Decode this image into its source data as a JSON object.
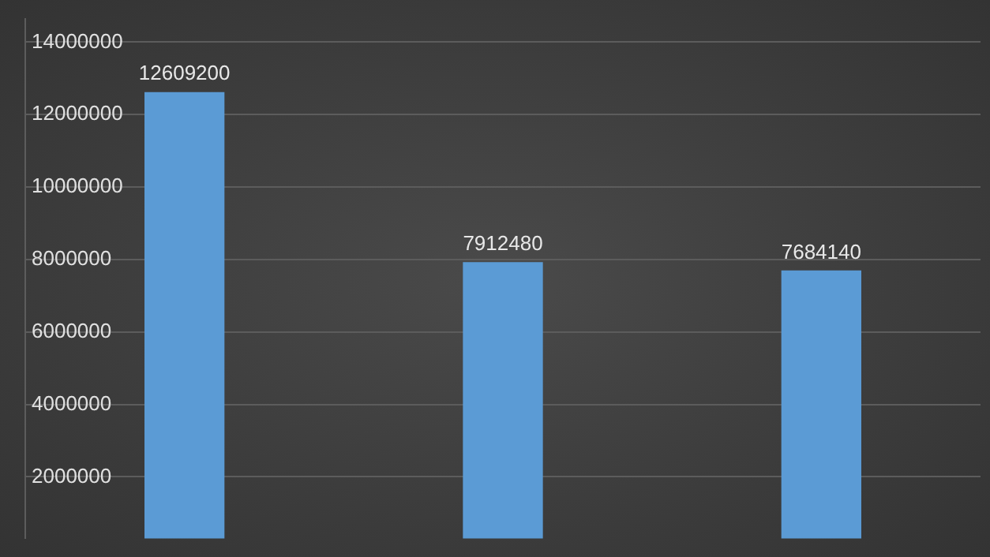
{
  "chart_data": {
    "type": "bar",
    "categories": [
      null,
      null,
      null
    ],
    "values": [
      12609200,
      7912480,
      7684140
    ],
    "color": "#5b9bd5",
    "ylim": [
      300000,
      14650000
    ],
    "yticks": [
      2000000,
      4000000,
      6000000,
      8000000,
      10000000,
      12000000,
      14000000
    ],
    "grid": "y",
    "data_labels": true,
    "legend": false,
    "tick_labels": "y"
  }
}
